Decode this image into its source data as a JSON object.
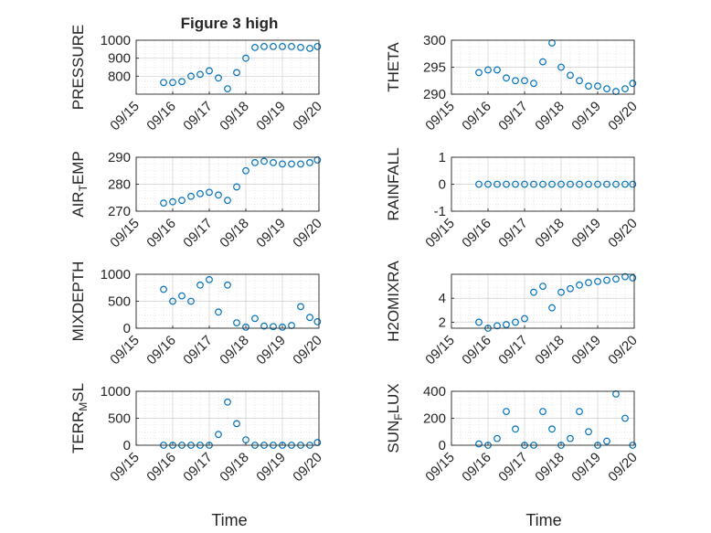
{
  "figure": {
    "title": "Figure 3 high",
    "marker_color": "#0072BD",
    "time_axis_label": "Time"
  },
  "chart_data": [
    {
      "type": "scatter",
      "ylabel": "PRESSURE",
      "ylim": [
        700,
        1000
      ],
      "yticks": [
        800,
        900,
        1000
      ],
      "xlim": [
        "09/15",
        "09/20"
      ],
      "xticks": [
        "09/15",
        "09/16",
        "09/17",
        "09/18",
        "09/19",
        "09/20"
      ],
      "grid": true,
      "x": [
        "09/15 18:00",
        "09/16 00:00",
        "09/16 06:00",
        "09/16 12:00",
        "09/16 18:00",
        "09/17 00:00",
        "09/17 06:00",
        "09/17 12:00",
        "09/17 18:00",
        "09/18 00:00",
        "09/18 06:00",
        "09/18 12:00",
        "09/18 18:00",
        "09/19 00:00",
        "09/19 06:00",
        "09/19 12:00",
        "09/19 18:00",
        "09/19 23:00"
      ],
      "y": [
        765,
        765,
        770,
        800,
        810,
        830,
        790,
        730,
        820,
        900,
        960,
        965,
        965,
        965,
        965,
        960,
        955,
        965
      ]
    },
    {
      "type": "scatter",
      "ylabel": "THETA",
      "ylim": [
        290,
        300
      ],
      "yticks": [
        290,
        295,
        300
      ],
      "xlim": [
        "09/15",
        "09/20"
      ],
      "xticks": [
        "09/15",
        "09/16",
        "09/17",
        "09/18",
        "09/19",
        "09/20"
      ],
      "grid": true,
      "x": [
        "09/15 18:00",
        "09/16 00:00",
        "09/16 06:00",
        "09/16 12:00",
        "09/16 18:00",
        "09/17 00:00",
        "09/17 06:00",
        "09/17 12:00",
        "09/17 18:00",
        "09/18 00:00",
        "09/18 06:00",
        "09/18 12:00",
        "09/18 18:00",
        "09/19 00:00",
        "09/19 06:00",
        "09/19 12:00",
        "09/19 18:00",
        "09/19 23:00"
      ],
      "y": [
        294,
        294.5,
        294.5,
        293,
        292.5,
        292.5,
        292,
        296,
        299.5,
        295,
        293.5,
        292.5,
        291.5,
        291.5,
        291,
        290.5,
        291,
        292
      ]
    },
    {
      "type": "scatter",
      "ylabel": "AIR_TEMP",
      "ylim": [
        270,
        290
      ],
      "yticks": [
        270,
        280,
        290
      ],
      "xlim": [
        "09/15",
        "09/20"
      ],
      "xticks": [
        "09/15",
        "09/16",
        "09/17",
        "09/18",
        "09/19",
        "09/20"
      ],
      "grid": true,
      "x": [
        "09/15 18:00",
        "09/16 00:00",
        "09/16 06:00",
        "09/16 12:00",
        "09/16 18:00",
        "09/17 00:00",
        "09/17 06:00",
        "09/17 12:00",
        "09/17 18:00",
        "09/18 00:00",
        "09/18 06:00",
        "09/18 12:00",
        "09/18 18:00",
        "09/19 00:00",
        "09/19 06:00",
        "09/19 12:00",
        "09/19 18:00",
        "09/19 23:00"
      ],
      "y": [
        273,
        273.5,
        274,
        275.5,
        276.5,
        277,
        276,
        274,
        279,
        285,
        288,
        288.5,
        288,
        287.5,
        287.5,
        287.5,
        288,
        289
      ]
    },
    {
      "type": "scatter",
      "ylabel": "RAINFALL",
      "ylim": [
        -1,
        1
      ],
      "yticks": [
        -1,
        0,
        1
      ],
      "xlim": [
        "09/15",
        "09/20"
      ],
      "xticks": [
        "09/15",
        "09/16",
        "09/17",
        "09/18",
        "09/19",
        "09/20"
      ],
      "grid": true,
      "x": [
        "09/15 18:00",
        "09/16 00:00",
        "09/16 06:00",
        "09/16 12:00",
        "09/16 18:00",
        "09/17 00:00",
        "09/17 06:00",
        "09/17 12:00",
        "09/17 18:00",
        "09/18 00:00",
        "09/18 06:00",
        "09/18 12:00",
        "09/18 18:00",
        "09/19 00:00",
        "09/19 06:00",
        "09/19 12:00",
        "09/19 18:00",
        "09/19 23:00"
      ],
      "y": [
        0,
        0,
        0,
        0,
        0,
        0,
        0,
        0,
        0,
        0,
        0,
        0,
        0,
        0,
        0,
        0,
        0,
        0
      ]
    },
    {
      "type": "scatter",
      "ylabel": "MIXDEPTH",
      "ylim": [
        0,
        1000
      ],
      "yticks": [
        0,
        500,
        1000
      ],
      "xlim": [
        "09/15",
        "09/20"
      ],
      "xticks": [
        "09/15",
        "09/16",
        "09/17",
        "09/18",
        "09/19",
        "09/20"
      ],
      "grid": true,
      "x": [
        "09/15 18:00",
        "09/16 00:00",
        "09/16 06:00",
        "09/16 12:00",
        "09/16 18:00",
        "09/17 00:00",
        "09/17 06:00",
        "09/17 12:00",
        "09/17 18:00",
        "09/18 00:00",
        "09/18 06:00",
        "09/18 12:00",
        "09/18 18:00",
        "09/19 00:00",
        "09/19 06:00",
        "09/19 12:00",
        "09/19 18:00",
        "09/19 23:00"
      ],
      "y": [
        720,
        500,
        600,
        500,
        800,
        900,
        300,
        800,
        100,
        20,
        180,
        40,
        30,
        20,
        50,
        400,
        200,
        120
      ]
    },
    {
      "type": "scatter",
      "ylabel": "H2OMIXRA",
      "ylim": [
        1.5,
        6
      ],
      "yticks": [
        2,
        4
      ],
      "xlim": [
        "09/15",
        "09/20"
      ],
      "xticks": [
        "09/15",
        "09/16",
        "09/17",
        "09/18",
        "09/19",
        "09/20"
      ],
      "grid": true,
      "x": [
        "09/15 18:00",
        "09/16 00:00",
        "09/16 06:00",
        "09/16 12:00",
        "09/16 18:00",
        "09/17 00:00",
        "09/17 06:00",
        "09/17 12:00",
        "09/17 18:00",
        "09/18 00:00",
        "09/18 06:00",
        "09/18 12:00",
        "09/18 18:00",
        "09/19 00:00",
        "09/19 06:00",
        "09/19 12:00",
        "09/19 18:00",
        "09/19 23:00"
      ],
      "y": [
        2,
        1.5,
        1.7,
        1.8,
        2,
        2.3,
        4.5,
        5,
        3.2,
        4.5,
        4.8,
        5.1,
        5.3,
        5.4,
        5.5,
        5.6,
        5.8,
        5.7
      ]
    },
    {
      "type": "scatter",
      "ylabel": "TERR_MSL",
      "ylim": [
        0,
        1000
      ],
      "yticks": [
        0,
        500,
        1000
      ],
      "xlim": [
        "09/15",
        "09/20"
      ],
      "xticks": [
        "09/15",
        "09/16",
        "09/17",
        "09/18",
        "09/19",
        "09/20"
      ],
      "grid": true,
      "x": [
        "09/15 18:00",
        "09/16 00:00",
        "09/16 06:00",
        "09/16 12:00",
        "09/16 18:00",
        "09/17 00:00",
        "09/17 06:00",
        "09/17 12:00",
        "09/17 18:00",
        "09/18 00:00",
        "09/18 06:00",
        "09/18 12:00",
        "09/18 18:00",
        "09/19 00:00",
        "09/19 06:00",
        "09/19 12:00",
        "09/19 18:00",
        "09/19 23:00"
      ],
      "y": [
        0,
        0,
        0,
        0,
        0,
        0,
        200,
        800,
        400,
        100,
        0,
        0,
        0,
        0,
        0,
        0,
        0,
        50
      ]
    },
    {
      "type": "scatter",
      "ylabel": "SUN_FLUX",
      "ylim": [
        0,
        400
      ],
      "yticks": [
        0,
        200,
        400
      ],
      "xlim": [
        "09/15",
        "09/20"
      ],
      "xticks": [
        "09/15",
        "09/16",
        "09/17",
        "09/18",
        "09/19",
        "09/20"
      ],
      "grid": true,
      "x": [
        "09/15 18:00",
        "09/16 00:00",
        "09/16 06:00",
        "09/16 12:00",
        "09/16 18:00",
        "09/17 00:00",
        "09/17 06:00",
        "09/17 12:00",
        "09/17 18:00",
        "09/18 00:00",
        "09/18 06:00",
        "09/18 12:00",
        "09/18 18:00",
        "09/19 00:00",
        "09/19 06:00",
        "09/19 12:00",
        "09/19 18:00",
        "09/19 23:00"
      ],
      "y": [
        10,
        0,
        50,
        250,
        120,
        0,
        0,
        250,
        120,
        0,
        50,
        250,
        100,
        0,
        30,
        380,
        200,
        0
      ]
    }
  ]
}
